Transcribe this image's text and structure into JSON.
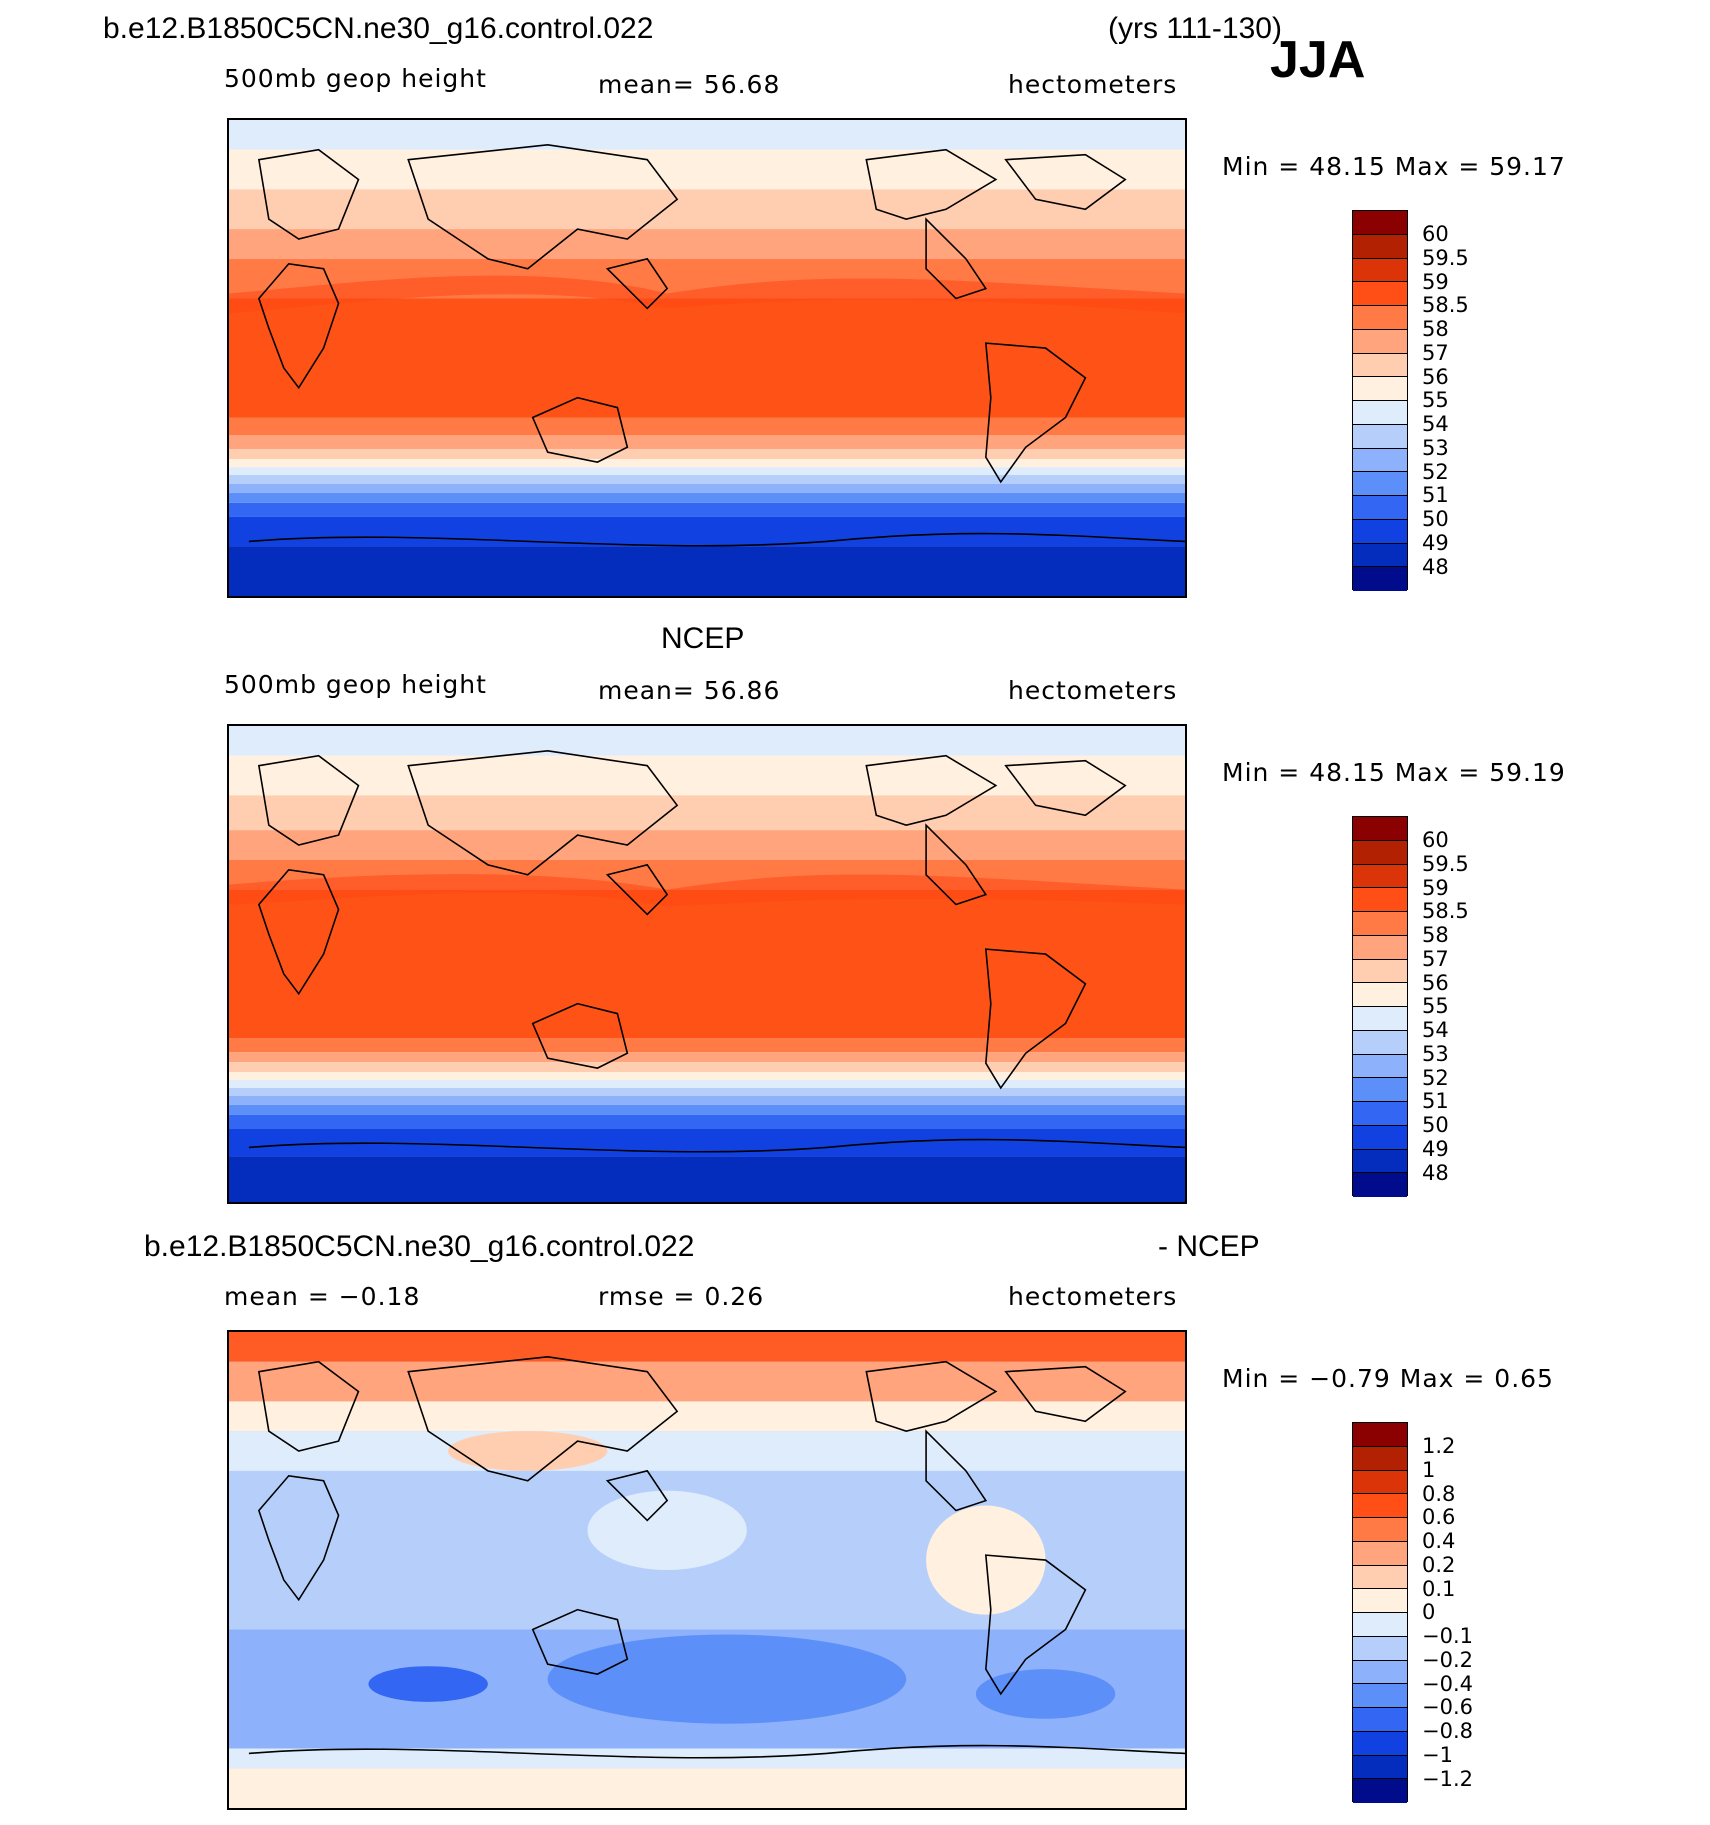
{
  "header": {
    "case_name": "b.e12.B1850C5CN.ne30_g16.control.022",
    "years": "(yrs 111-130)",
    "season": "JJA"
  },
  "panels": [
    {
      "title": "",
      "left_label": "500mb geop height",
      "center_label": "mean=   56.68",
      "right_label": "hectometers",
      "minmax": "Min =   48.15  Max =   59.17",
      "map_image": "world-map-contour-model"
    },
    {
      "title": "NCEP",
      "left_label": "500mb geop height",
      "center_label": "mean=   56.86",
      "right_label": "hectometers",
      "minmax": "Min =   48.15  Max =   59.19",
      "map_image": "world-map-contour-ncep"
    },
    {
      "title": "b.e12.B1850C5CN.ne30_g16.control.022",
      "title_right": "- NCEP",
      "left_label": "mean =   −0.18",
      "center_label": "rmse =    0.26",
      "right_label": "hectometers",
      "minmax": "Min =  −0.79  Max =    0.65",
      "map_image": "world-map-contour-difference"
    }
  ],
  "colorbar_levels": {
    "field": [
      "60",
      "59.5",
      "59",
      "58.5",
      "58",
      "57",
      "56",
      "55",
      "54",
      "53",
      "52",
      "51",
      "50",
      "49",
      "48"
    ],
    "diff": [
      "1.2",
      "1",
      "0.8",
      "0.6",
      "0.4",
      "0.2",
      "0.1",
      "0",
      "−0.1",
      "−0.2",
      "−0.4",
      "−0.6",
      "−0.8",
      "−1",
      "−1.2"
    ]
  },
  "colorbar_colors": [
    "#8b0000",
    "#b22202",
    "#db3409",
    "#ff4f16",
    "#ff7a45",
    "#ffa47c",
    "#ffcdb0",
    "#fff0e0",
    "#dfecfb",
    "#b6cffa",
    "#8db2fb",
    "#5d8ff8",
    "#3266f3",
    "#1141e0",
    "#042cbd",
    "#000c8b"
  ],
  "map_colors": {
    "field": [
      "#fe5216",
      "#ff7a45",
      "#ffa47c",
      "#ffcdb0",
      "#fff0e0",
      "#dfecfb",
      "#b6cffa",
      "#8db2fb",
      "#5d8ff8",
      "#3266f3",
      "#1141e0",
      "#042cbd"
    ],
    "diff": [
      "#ff5b24",
      "#ffa47c",
      "#ffcdb0",
      "#fff0e0",
      "#dfecfb",
      "#b6cffa",
      "#8db2fb",
      "#5d8ff8",
      "#3266f3"
    ]
  }
}
